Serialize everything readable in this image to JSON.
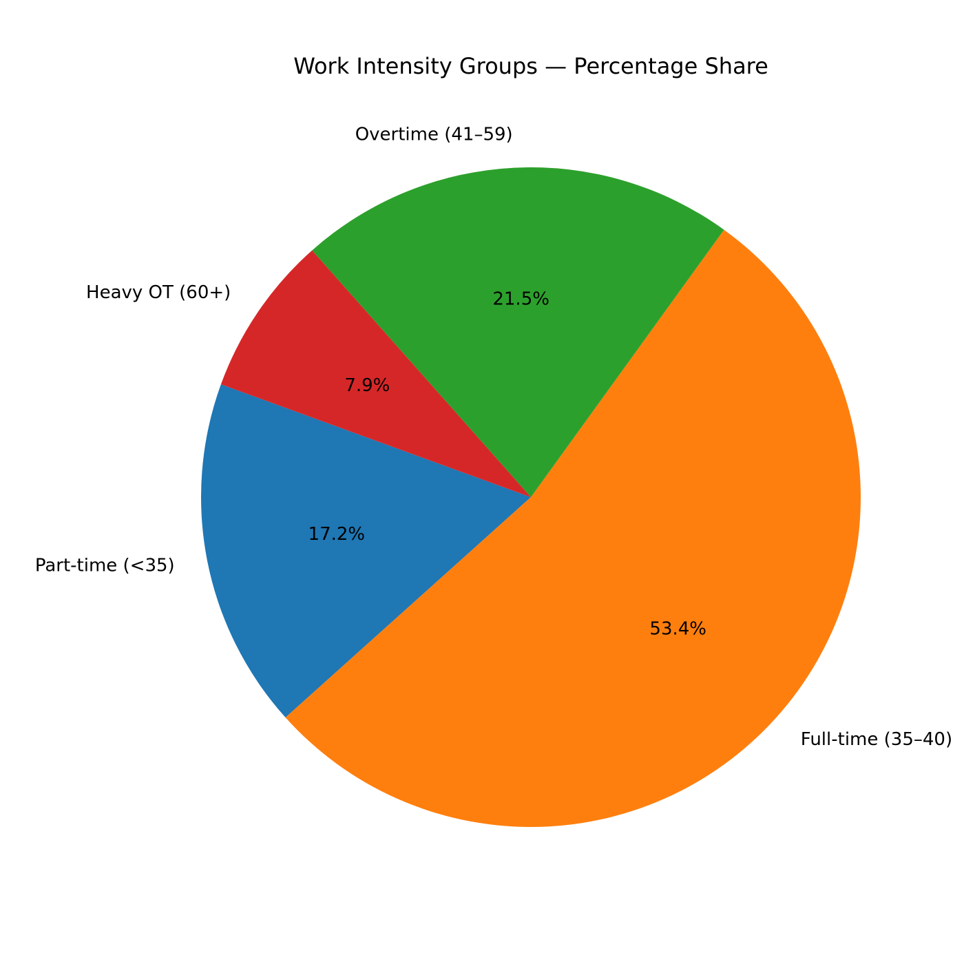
{
  "chart_data": {
    "type": "pie",
    "title": "Work Intensity Groups — Percentage Share",
    "categories": [
      "Part-time (<35)",
      "Full-time (35–40)",
      "Overtime (41–59)",
      "Heavy OT (60+)"
    ],
    "values": [
      17.2,
      53.4,
      21.5,
      7.9
    ],
    "percent_labels": [
      "17.2%",
      "53.4%",
      "21.5%",
      "7.9%"
    ],
    "colors": [
      "#1f77b4",
      "#ff7f0e",
      "#2ca02c",
      "#d62728"
    ],
    "start_angle_deg": 160,
    "direction": "counterclockwise",
    "legend": "none"
  }
}
